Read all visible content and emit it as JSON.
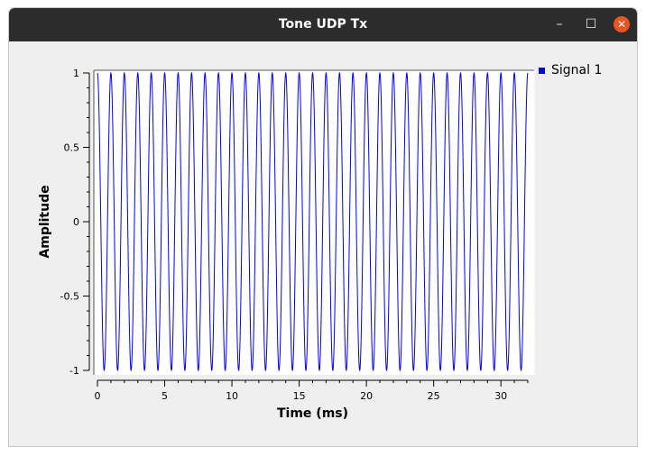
{
  "window": {
    "title": "Tone UDP Tx"
  },
  "titlebar_buttons": {
    "minimize": "–",
    "maximize": "☐",
    "close": "✕"
  },
  "colors": {
    "titlebar": "#2c2c2c",
    "close": "#e95420",
    "series": "#0000ff"
  },
  "legend": {
    "label": "Signal 1"
  },
  "chart_data": {
    "type": "line",
    "xlabel": "Time (ms)",
    "ylabel": "Amplitude",
    "xlim": [
      0,
      32
    ],
    "ylim": [
      -1,
      1
    ],
    "x_ticks": [
      0,
      5,
      10,
      15,
      20,
      25,
      30
    ],
    "y_ticks": [
      1,
      0.5,
      0,
      -0.5,
      -1
    ],
    "y_tick_labels": [
      "1",
      "0.5",
      "0",
      "-0.5",
      "-1"
    ],
    "series": [
      {
        "name": "Signal 1",
        "kind": "cosine",
        "amplitude": 1,
        "frequency_khz": 1,
        "x_start": 0,
        "x_end": 32
      }
    ]
  }
}
